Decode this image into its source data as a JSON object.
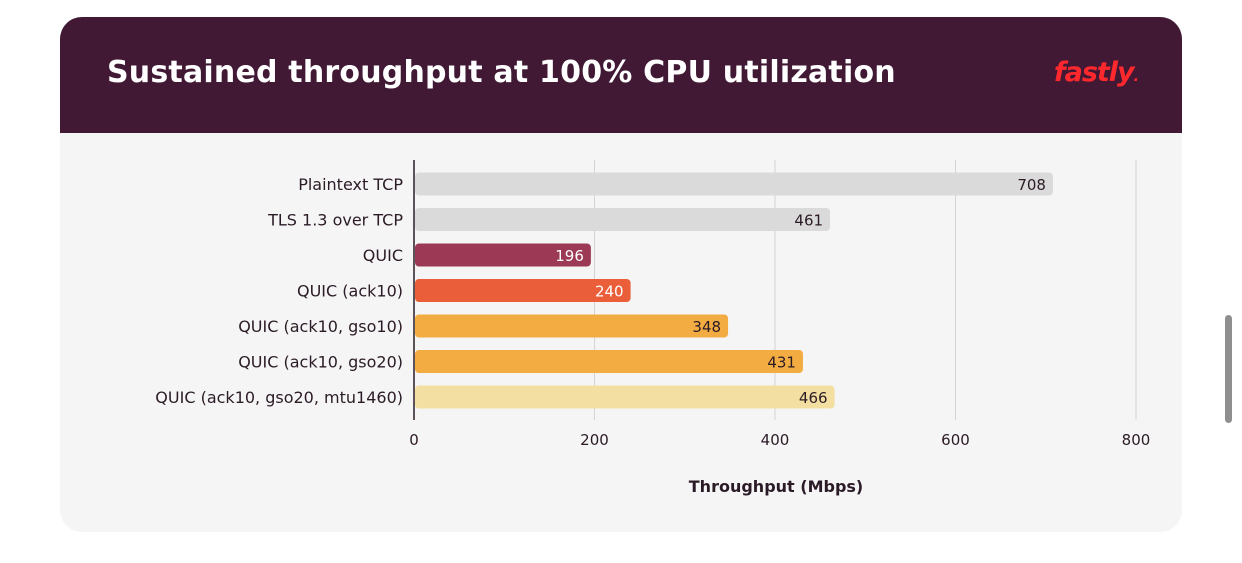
{
  "header": {
    "title": "Sustained throughput at 100% CPU utilization",
    "logo_text": "fastly",
    "background": "#411935",
    "logo_color": "#ff282d"
  },
  "chart_data": {
    "type": "bar",
    "orientation": "horizontal",
    "categories": [
      "Plaintext TCP",
      "TLS 1.3 over TCP",
      "QUIC",
      "QUIC (ack10)",
      "QUIC (ack10, gso10)",
      "QUIC (ack10, gso20)",
      "QUIC (ack10, gso20, mtu1460)"
    ],
    "values": [
      708,
      461,
      196,
      240,
      348,
      431,
      466
    ],
    "colors": [
      "#dadada",
      "#dadada",
      "#9c3a55",
      "#ea5f39",
      "#f3ac41",
      "#f3ac41",
      "#f3dfa2"
    ],
    "label_colors": [
      "#2b1b26",
      "#2b1b26",
      "#ffffff",
      "#ffffff",
      "#2b1b26",
      "#2b1b26",
      "#2b1b26"
    ],
    "title": "Sustained throughput at 100% CPU utilization",
    "xlabel": "Throughput (Mbps)",
    "ylabel": "",
    "xlim": [
      0,
      800
    ],
    "xticks": [
      0,
      200,
      400,
      600,
      800
    ],
    "grid": true,
    "legend": "none"
  }
}
